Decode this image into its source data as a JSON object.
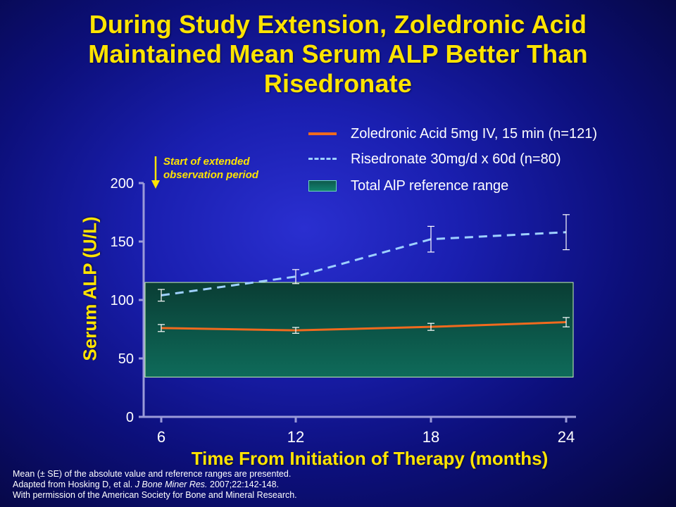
{
  "slide": {
    "title_line1": "During Study Extension, Zoledronic Acid",
    "title_line2": "Maintained Mean Serum ALP Better Than",
    "title_line3": "Risedronate"
  },
  "annotation": {
    "line1": "Start of extended",
    "line2": "observation period"
  },
  "footnote": {
    "line1": "Mean (± SE) of the absolute value and reference ranges are presented.",
    "line2_pre": "Adapted from Hosking D, et al. ",
    "line2_journal": "J Bone Miner Res.",
    "line2_post": " 2007;22:142-148.",
    "line3": "With permission of the American Society for Bone and Mineral Research."
  },
  "colors": {
    "title": "#ffe400",
    "zoledronic": "#f06a1e",
    "risedronate": "#9ed0ff",
    "reference_range": "#0e6b5a"
  },
  "chart_data": {
    "type": "line",
    "xlabel": "Time From Initiation of Therapy (months)",
    "ylabel": "Serum ALP (U/L)",
    "x": [
      6,
      12,
      18,
      24
    ],
    "xticks": [
      "6",
      "12",
      "18",
      "24"
    ],
    "ylim": [
      0,
      200
    ],
    "yticks": [
      "0",
      "50",
      "100",
      "150",
      "200"
    ],
    "grid": false,
    "legend_position": "top-right",
    "series": [
      {
        "name": "Zoledronic Acid 5mg IV, 15 min (n=121)",
        "style": "solid",
        "values": [
          76,
          74,
          77,
          81
        ],
        "se": [
          3,
          2.5,
          3,
          4
        ]
      },
      {
        "name": "Risedronate 30mg/d x 60d (n=80)",
        "style": "dashed",
        "values": [
          104,
          120,
          152,
          158
        ],
        "se": [
          5,
          6,
          11,
          15
        ]
      }
    ],
    "reference_range": {
      "name": "Total AlP reference range",
      "low": 34,
      "high": 115
    }
  }
}
